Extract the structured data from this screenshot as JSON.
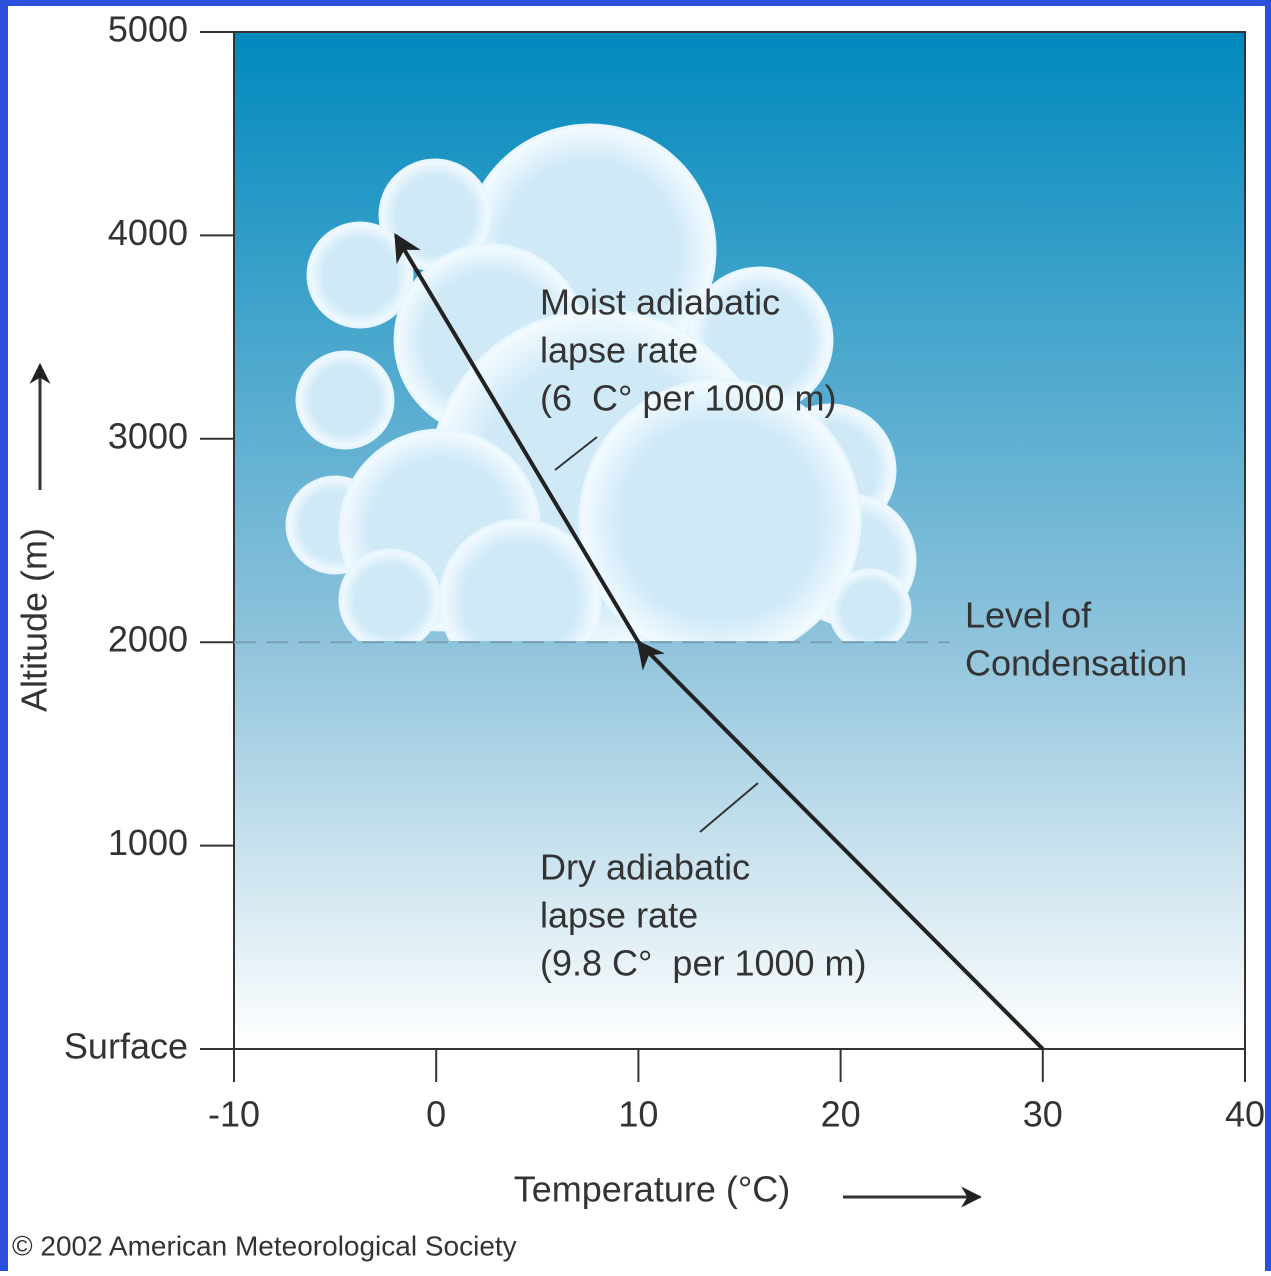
{
  "chart_data": {
    "type": "line",
    "x_label": "Temperature (°C)",
    "y_label": "Altitude (m)",
    "series": [
      {
        "color": "#222222",
        "x": [
          30,
          10,
          -2
        ],
        "values": [
          0,
          2000,
          4000
        ]
      }
    ],
    "xlim": [
      -10,
      40
    ],
    "xticks": [
      -10,
      0,
      10,
      20,
      30,
      40
    ],
    "ylim": [
      0,
      5000
    ],
    "yticks": [
      {
        "value": 0,
        "label": "Surface"
      },
      1000,
      2000,
      3000,
      4000,
      5000
    ],
    "hline": {
      "value": 2000,
      "label": [
        "Level of",
        "Condensation"
      ]
    },
    "annotations": [
      {
        "lines": [
          "Moist adiabatic",
          "lapse rate",
          "(6  C° per 1000 m)"
        ]
      },
      {
        "lines": [
          "Dry adiabatic",
          "lapse rate",
          "(9.8 C°  per 1000 m)"
        ]
      }
    ],
    "credit": "© 2002 American Meteorological Society"
  }
}
